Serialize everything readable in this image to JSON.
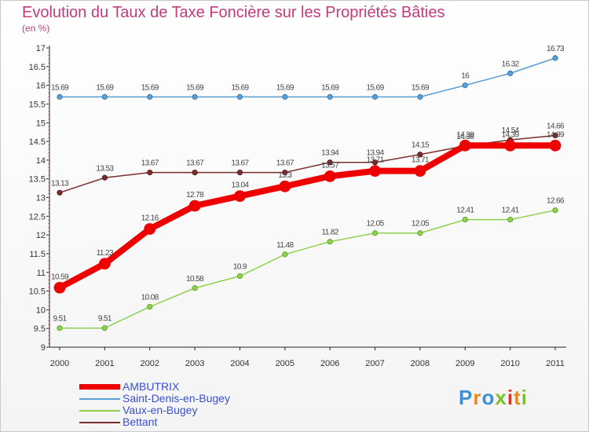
{
  "header": {
    "title": "Evolution du Taux de Taxe Foncière sur les Propriétés Bâties",
    "subtitle": "(en %)"
  },
  "logo": {
    "letters": [
      "P",
      "r",
      "o",
      "x",
      "i",
      "t",
      "i"
    ],
    "colors": [
      "#3d8fd6",
      "#e98a1c",
      "#3d8fd6",
      "#7bbf2a",
      "#d6332b",
      "#e98a1c",
      "#7bbf2a"
    ]
  },
  "chart_data": {
    "type": "line",
    "title": "Evolution du Taux de Taxe Foncière sur les Propriétés Bâties",
    "subtitle": "(en %)",
    "x": [
      "2000",
      "2001",
      "2002",
      "2003",
      "2004",
      "2005",
      "2006",
      "2007",
      "2008",
      "2009",
      "2010",
      "2011"
    ],
    "ylim": [
      9,
      17
    ],
    "yticks": [
      "9",
      "9.5",
      "10",
      "10.5",
      "11",
      "11.5",
      "12",
      "12.5",
      "13",
      "13.5",
      "14",
      "14.5",
      "15",
      "15.5",
      "16",
      "16.5",
      "17"
    ],
    "grid": false,
    "legend_position": "bottom-left",
    "series": [
      {
        "name": "AMBUTRIX",
        "color": "#ee0000",
        "values": [
          10.59,
          11.23,
          12.16,
          12.78,
          13.04,
          13.3,
          13.57,
          13.71,
          13.71,
          14.39,
          14.39,
          14.39
        ],
        "labels": [
          "10.59",
          "11.23",
          "12.16",
          "12.78",
          "13.04",
          "13.3",
          "13.57",
          "13.71",
          "13.71",
          "14.39",
          "14.39",
          "14.39"
        ]
      },
      {
        "name": "Saint-Denis-en-Bugey",
        "color": "#5a9fd4",
        "values": [
          15.69,
          15.69,
          15.69,
          15.69,
          15.69,
          15.69,
          15.69,
          15.69,
          15.69,
          16,
          16.32,
          16.73
        ],
        "labels": [
          "15.69",
          "15.69",
          "15.69",
          "15.69",
          "15.69",
          "15.69",
          "15.69",
          "15.69",
          "15.69",
          "16",
          "16.32",
          "16.73"
        ]
      },
      {
        "name": "Vaux-en-Bugey",
        "color": "#8fd14f",
        "values": [
          9.51,
          9.51,
          10.08,
          10.58,
          10.9,
          11.48,
          11.82,
          12.05,
          12.05,
          12.41,
          12.41,
          12.66
        ],
        "labels": [
          "9.51",
          "9.51",
          "10.08",
          "10.58",
          "10.9",
          "11.48",
          "11.82",
          "12.05",
          "12.05",
          "12.41",
          "12.41",
          "12.66"
        ]
      },
      {
        "name": "Bettant",
        "color": "#7a2e2e",
        "values": [
          13.13,
          13.53,
          13.67,
          13.67,
          13.67,
          13.67,
          13.94,
          13.94,
          14.15,
          14.38,
          14.54,
          14.66
        ],
        "labels": [
          "13.13",
          "13.53",
          "13.67",
          "13.67",
          "13.67",
          "13.67",
          "13.94",
          "13.94",
          "14.15",
          "14.38",
          "14.54",
          "14.66"
        ]
      }
    ]
  }
}
